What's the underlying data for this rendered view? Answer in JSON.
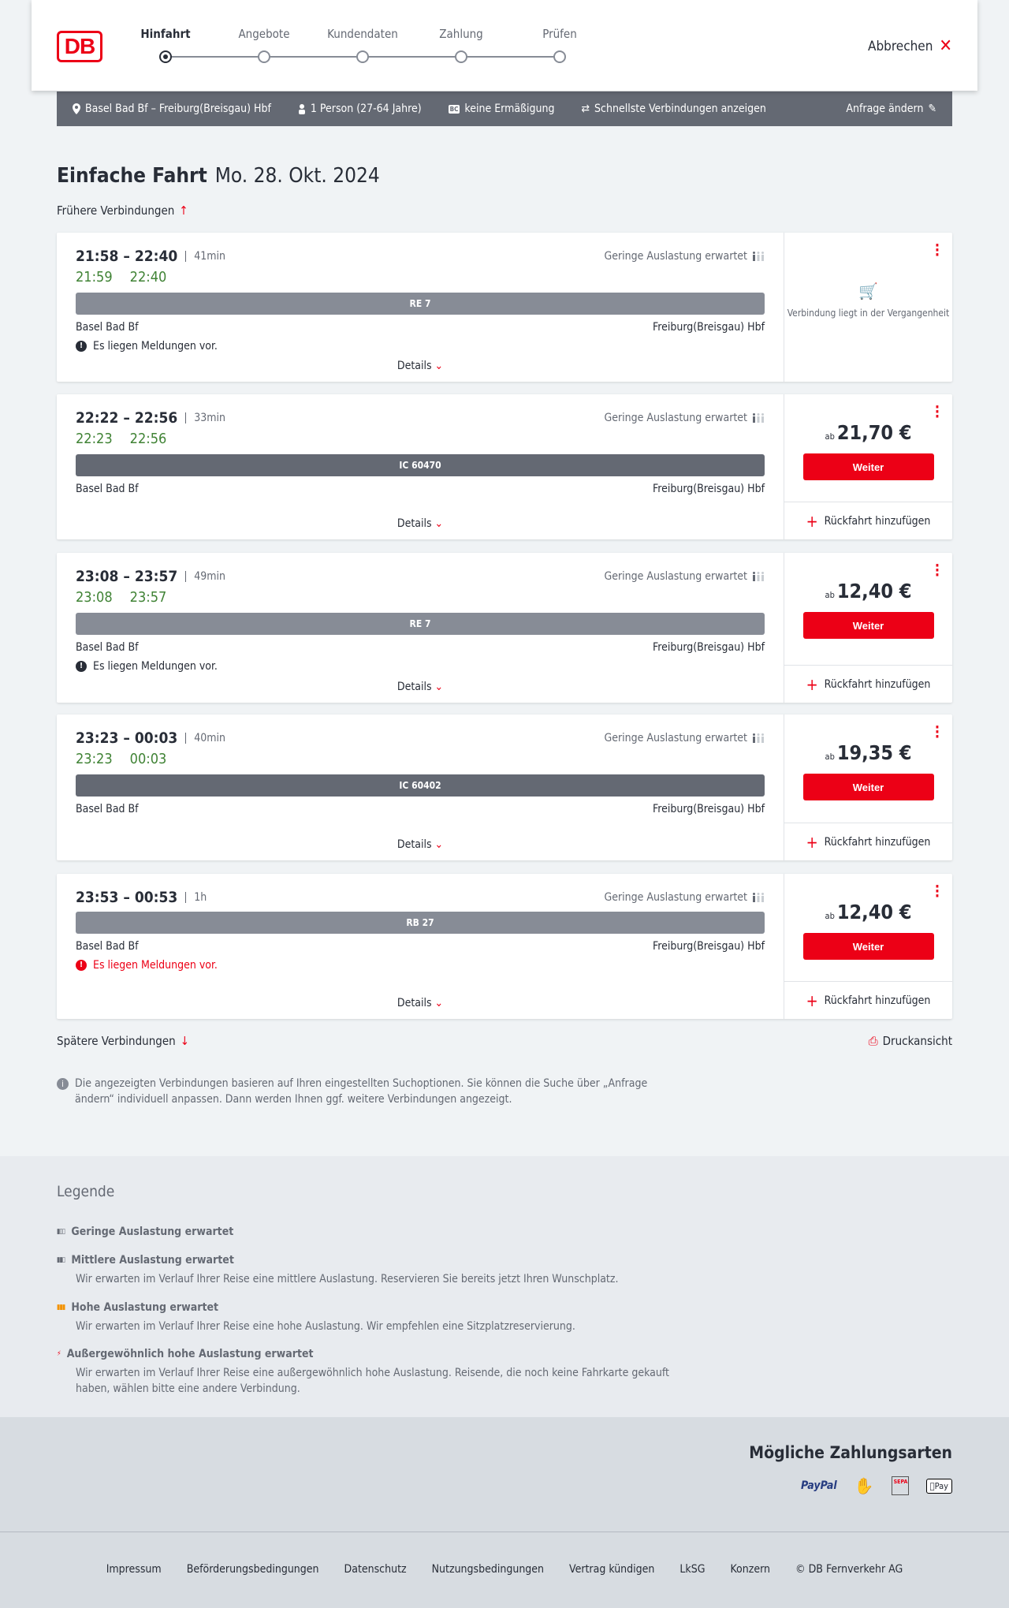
{
  "header": {
    "logo": "DB",
    "steps": [
      "Hinfahrt",
      "Angebote",
      "Kundendaten",
      "Zahlung",
      "Prüfen"
    ],
    "active_step": 0,
    "cancel": "Abbrechen"
  },
  "search": {
    "route": "Basel Bad Bf – Freiburg(Breisgau) Hbf",
    "passengers": "1 Person (27-64 Jahre)",
    "discount_badge": "BC",
    "discount": "keine Ermäßigung",
    "fastest": "Schnellste Verbindungen anzeigen",
    "edit": "Anfrage ändern"
  },
  "page": {
    "title": "Einfache Fahrt",
    "date": "Mo. 28. Okt. 2024",
    "earlier": "Frühere Verbindungen",
    "later": "Spätere Verbindungen",
    "print": "Druckansicht",
    "info": "Die angezeigten Verbindungen basieren auf Ihren eingestellten Suchoptionen. Sie können die Suche über „Anfrage ändern“ individuell anpassen. Dann werden Ihnen ggf. weitere Verbindungen angezeigt."
  },
  "labels": {
    "occupancy": "Geringe Auslastung erwartet",
    "details": "Details",
    "weiter": "Weiter",
    "ab": "ab",
    "return": "Rückfahrt hinzufügen",
    "past": "Verbindung liegt in der Vergangenheit"
  },
  "connections": [
    {
      "time": "21:58 – 22:40",
      "duration": "41min",
      "rt_dep": "21:59",
      "rt_arr": "22:40",
      "train": "RE 7",
      "train_color": "#878c96",
      "from": "Basel Bad Bf",
      "to": "Freiburg(Breisgau) Hbf",
      "message": "Es liegen Meldungen vor.",
      "message_red": false,
      "price": null
    },
    {
      "time": "22:22 – 22:56",
      "duration": "33min",
      "rt_dep": "22:23",
      "rt_arr": "22:56",
      "train": "IC 60470",
      "train_color": "#646973",
      "from": "Basel Bad Bf",
      "to": "Freiburg(Breisgau) Hbf",
      "message": null,
      "price": "21,70 €"
    },
    {
      "time": "23:08 – 23:57",
      "duration": "49min",
      "rt_dep": "23:08",
      "rt_arr": "23:57",
      "train": "RE 7",
      "train_color": "#878c96",
      "from": "Basel Bad Bf",
      "to": "Freiburg(Breisgau) Hbf",
      "message": "Es liegen Meldungen vor.",
      "message_red": false,
      "price": "12,40 €"
    },
    {
      "time": "23:23 – 00:03",
      "duration": "40min",
      "rt_dep": "23:23",
      "rt_arr": "00:03",
      "train": "IC 60402",
      "train_color": "#646973",
      "from": "Basel Bad Bf",
      "to": "Freiburg(Breisgau) Hbf",
      "message": null,
      "price": "19,35 €"
    },
    {
      "time": "23:53 – 00:53",
      "duration": "1h",
      "rt_dep": null,
      "rt_arr": null,
      "train": "RB 27",
      "train_color": "#878c96",
      "from": "Basel Bad Bf",
      "to": "Freiburg(Breisgau) Hbf",
      "message": "Es liegen Meldungen vor.",
      "message_red": true,
      "price": "12,40 €"
    }
  ],
  "legend": {
    "title": "Legende",
    "items": [
      {
        "title": "Geringe Auslastung erwartet",
        "text": null,
        "color": "#646973"
      },
      {
        "title": "Mittlere Auslastung erwartet",
        "text": "Wir erwarten im Verlauf Ihrer Reise eine mittlere Auslastung. Reservieren Sie bereits jetzt Ihren Wunschplatz.",
        "color": "#646973"
      },
      {
        "title": "Hohe Auslastung erwartet",
        "text": "Wir erwarten im Verlauf Ihrer Reise eine hohe Auslastung. Wir empfehlen eine Sitzplatzreservierung.",
        "color": "#f39200"
      },
      {
        "title": "Außergewöhnlich hohe Auslastung erwartet",
        "text": "Wir erwarten im Verlauf Ihrer Reise eine außergewöhnlich hohe Auslastung. Reisende, die noch keine Fahrkarte gekauft haben, wählen bitte eine andere Verbindung.",
        "color": "#ec0016"
      }
    ]
  },
  "payment": {
    "title": "Mögliche Zahlungsarten",
    "methods": [
      "PayPal",
      "SEPA",
      "Pay"
    ]
  },
  "footer": [
    "Impressum",
    "Beförderungsbedingungen",
    "Datenschutz",
    "Nutzungsbedingungen",
    "Vertrag kündigen",
    "LkSG",
    "Konzern",
    "© DB Fernverkehr AG"
  ],
  "colors": {
    "accent": "#ec0016",
    "realtime": "#408335",
    "bar": "#646973"
  }
}
